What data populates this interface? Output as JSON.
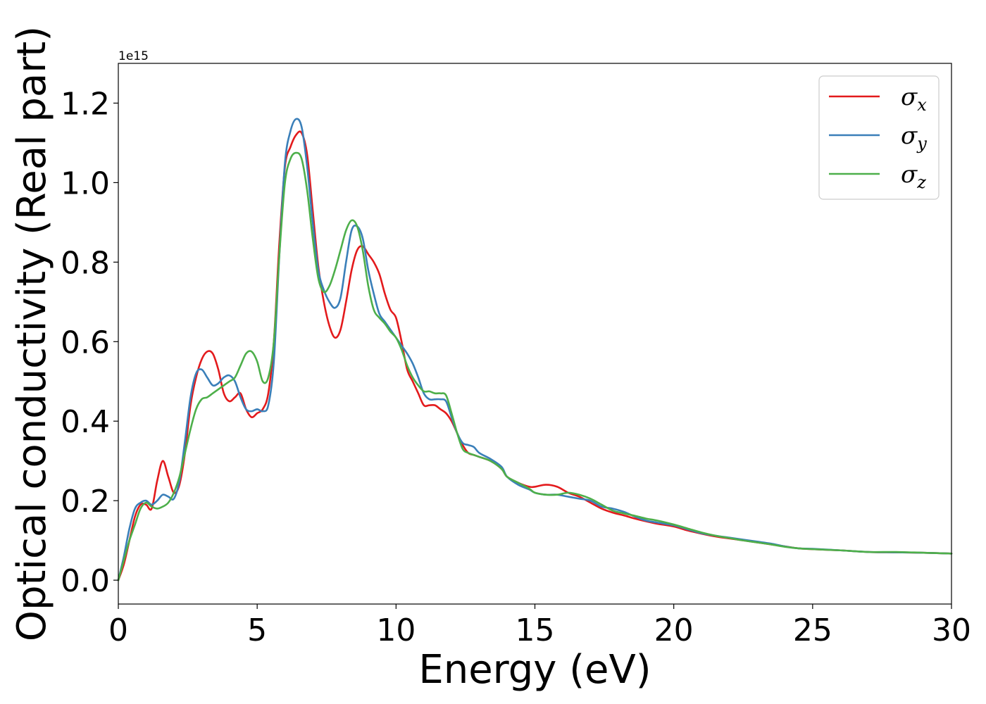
{
  "chart_data": {
    "type": "line",
    "xlabel": "Energy (eV)",
    "ylabel": "Optical conductivity (Real part)",
    "y_offset_label": "1e15",
    "xlim": [
      0,
      30
    ],
    "ylim": [
      -0.06,
      1.3
    ],
    "x_ticks": [
      0,
      5,
      10,
      15,
      20,
      25,
      30
    ],
    "x_tick_labels": [
      "0",
      "5",
      "10",
      "15",
      "20",
      "25",
      "30"
    ],
    "y_ticks": [
      0.0,
      0.2,
      0.4,
      0.6,
      0.8,
      1.0,
      1.2
    ],
    "y_tick_labels": [
      "0.0",
      "0.2",
      "0.4",
      "0.6",
      "0.8",
      "1.0",
      "1.2"
    ],
    "grid": false,
    "legend_position": "top-right",
    "series": [
      {
        "name": "σ",
        "subscript": "x",
        "color": "#e31a1c",
        "points": [
          [
            0,
            0
          ],
          [
            0.2,
            0.04
          ],
          [
            0.4,
            0.1
          ],
          [
            0.6,
            0.16
          ],
          [
            0.8,
            0.19
          ],
          [
            1.0,
            0.19
          ],
          [
            1.2,
            0.18
          ],
          [
            1.4,
            0.25
          ],
          [
            1.6,
            0.3
          ],
          [
            1.8,
            0.26
          ],
          [
            2.0,
            0.22
          ],
          [
            2.2,
            0.24
          ],
          [
            2.4,
            0.32
          ],
          [
            2.6,
            0.44
          ],
          [
            2.8,
            0.51
          ],
          [
            3.0,
            0.555
          ],
          [
            3.2,
            0.575
          ],
          [
            3.4,
            0.57
          ],
          [
            3.6,
            0.53
          ],
          [
            3.8,
            0.47
          ],
          [
            4.0,
            0.45
          ],
          [
            4.2,
            0.46
          ],
          [
            4.4,
            0.47
          ],
          [
            4.6,
            0.43
          ],
          [
            4.8,
            0.41
          ],
          [
            5.0,
            0.42
          ],
          [
            5.2,
            0.43
          ],
          [
            5.4,
            0.47
          ],
          [
            5.6,
            0.6
          ],
          [
            5.8,
            0.85
          ],
          [
            6.0,
            1.04
          ],
          [
            6.2,
            1.09
          ],
          [
            6.4,
            1.12
          ],
          [
            6.6,
            1.125
          ],
          [
            6.8,
            1.07
          ],
          [
            7.0,
            0.93
          ],
          [
            7.2,
            0.79
          ],
          [
            7.4,
            0.7
          ],
          [
            7.6,
            0.64
          ],
          [
            7.8,
            0.61
          ],
          [
            8.0,
            0.63
          ],
          [
            8.2,
            0.7
          ],
          [
            8.4,
            0.78
          ],
          [
            8.6,
            0.83
          ],
          [
            8.8,
            0.84
          ],
          [
            9.0,
            0.82
          ],
          [
            9.2,
            0.8
          ],
          [
            9.4,
            0.77
          ],
          [
            9.6,
            0.72
          ],
          [
            9.8,
            0.68
          ],
          [
            10.0,
            0.66
          ],
          [
            10.2,
            0.6
          ],
          [
            10.4,
            0.53
          ],
          [
            10.6,
            0.5
          ],
          [
            10.8,
            0.47
          ],
          [
            11.0,
            0.44
          ],
          [
            11.2,
            0.44
          ],
          [
            11.4,
            0.44
          ],
          [
            11.6,
            0.43
          ],
          [
            11.8,
            0.42
          ],
          [
            12.0,
            0.4
          ],
          [
            12.2,
            0.37
          ],
          [
            12.4,
            0.34
          ],
          [
            12.6,
            0.32
          ],
          [
            12.8,
            0.315
          ],
          [
            13.0,
            0.31
          ],
          [
            13.4,
            0.3
          ],
          [
            13.8,
            0.28
          ],
          [
            14.0,
            0.26
          ],
          [
            14.4,
            0.245
          ],
          [
            14.8,
            0.235
          ],
          [
            15.0,
            0.235
          ],
          [
            15.4,
            0.24
          ],
          [
            15.8,
            0.235
          ],
          [
            16.2,
            0.22
          ],
          [
            16.6,
            0.21
          ],
          [
            17.0,
            0.195
          ],
          [
            17.4,
            0.18
          ],
          [
            17.8,
            0.17
          ],
          [
            18.2,
            0.163
          ],
          [
            18.6,
            0.155
          ],
          [
            19.0,
            0.148
          ],
          [
            19.4,
            0.142
          ],
          [
            20.0,
            0.135
          ],
          [
            20.5,
            0.125
          ],
          [
            21.0,
            0.117
          ],
          [
            21.5,
            0.11
          ],
          [
            22.0,
            0.105
          ],
          [
            22.5,
            0.1
          ],
          [
            23.0,
            0.095
          ],
          [
            23.5,
            0.09
          ],
          [
            24.0,
            0.085
          ],
          [
            24.5,
            0.08
          ],
          [
            25.0,
            0.078
          ],
          [
            26.0,
            0.075
          ],
          [
            27.0,
            0.071
          ],
          [
            28.0,
            0.07
          ],
          [
            29.0,
            0.069
          ],
          [
            30.0,
            0.067
          ]
        ]
      },
      {
        "name": "σ",
        "subscript": "y",
        "color": "#3a7fb9",
        "points": [
          [
            0,
            0
          ],
          [
            0.2,
            0.06
          ],
          [
            0.4,
            0.13
          ],
          [
            0.6,
            0.18
          ],
          [
            0.8,
            0.195
          ],
          [
            1.0,
            0.2
          ],
          [
            1.2,
            0.19
          ],
          [
            1.4,
            0.2
          ],
          [
            1.6,
            0.215
          ],
          [
            1.8,
            0.21
          ],
          [
            2.0,
            0.205
          ],
          [
            2.2,
            0.25
          ],
          [
            2.4,
            0.35
          ],
          [
            2.6,
            0.46
          ],
          [
            2.8,
            0.52
          ],
          [
            3.0,
            0.53
          ],
          [
            3.2,
            0.51
          ],
          [
            3.4,
            0.49
          ],
          [
            3.6,
            0.495
          ],
          [
            3.8,
            0.51
          ],
          [
            4.0,
            0.515
          ],
          [
            4.2,
            0.5
          ],
          [
            4.4,
            0.46
          ],
          [
            4.6,
            0.43
          ],
          [
            4.8,
            0.425
          ],
          [
            5.0,
            0.43
          ],
          [
            5.2,
            0.425
          ],
          [
            5.4,
            0.44
          ],
          [
            5.6,
            0.55
          ],
          [
            5.8,
            0.82
          ],
          [
            6.0,
            1.05
          ],
          [
            6.2,
            1.13
          ],
          [
            6.4,
            1.16
          ],
          [
            6.6,
            1.14
          ],
          [
            6.8,
            1.04
          ],
          [
            7.0,
            0.9
          ],
          [
            7.2,
            0.78
          ],
          [
            7.4,
            0.73
          ],
          [
            7.6,
            0.7
          ],
          [
            7.8,
            0.685
          ],
          [
            8.0,
            0.71
          ],
          [
            8.2,
            0.8
          ],
          [
            8.4,
            0.88
          ],
          [
            8.6,
            0.89
          ],
          [
            8.8,
            0.86
          ],
          [
            9.0,
            0.78
          ],
          [
            9.2,
            0.72
          ],
          [
            9.4,
            0.67
          ],
          [
            9.6,
            0.65
          ],
          [
            9.8,
            0.63
          ],
          [
            10.0,
            0.61
          ],
          [
            10.2,
            0.59
          ],
          [
            10.4,
            0.57
          ],
          [
            10.6,
            0.545
          ],
          [
            10.8,
            0.51
          ],
          [
            11.0,
            0.47
          ],
          [
            11.2,
            0.455
          ],
          [
            11.4,
            0.455
          ],
          [
            11.6,
            0.455
          ],
          [
            11.8,
            0.45
          ],
          [
            12.0,
            0.41
          ],
          [
            12.2,
            0.37
          ],
          [
            12.4,
            0.345
          ],
          [
            12.6,
            0.34
          ],
          [
            12.8,
            0.335
          ],
          [
            13.0,
            0.32
          ],
          [
            13.4,
            0.305
          ],
          [
            13.8,
            0.285
          ],
          [
            14.0,
            0.26
          ],
          [
            14.4,
            0.24
          ],
          [
            14.8,
            0.228
          ],
          [
            15.0,
            0.22
          ],
          [
            15.4,
            0.215
          ],
          [
            15.8,
            0.215
          ],
          [
            16.2,
            0.21
          ],
          [
            16.6,
            0.205
          ],
          [
            17.0,
            0.2
          ],
          [
            17.4,
            0.185
          ],
          [
            17.8,
            0.18
          ],
          [
            18.2,
            0.172
          ],
          [
            18.6,
            0.16
          ],
          [
            19.0,
            0.15
          ],
          [
            19.4,
            0.145
          ],
          [
            20.0,
            0.138
          ],
          [
            20.5,
            0.128
          ],
          [
            21.0,
            0.118
          ],
          [
            21.5,
            0.112
          ],
          [
            22.0,
            0.107
          ],
          [
            22.5,
            0.102
          ],
          [
            23.0,
            0.097
          ],
          [
            23.5,
            0.092
          ],
          [
            24.0,
            0.085
          ],
          [
            24.5,
            0.08
          ],
          [
            25.0,
            0.079
          ],
          [
            26.0,
            0.075
          ],
          [
            27.0,
            0.071
          ],
          [
            28.0,
            0.07
          ],
          [
            29.0,
            0.069
          ],
          [
            30.0,
            0.067
          ]
        ]
      },
      {
        "name": "σ",
        "subscript": "z",
        "color": "#4daf4a",
        "points": [
          [
            0,
            0
          ],
          [
            0.2,
            0.05
          ],
          [
            0.4,
            0.1
          ],
          [
            0.6,
            0.14
          ],
          [
            0.8,
            0.18
          ],
          [
            1.0,
            0.195
          ],
          [
            1.2,
            0.185
          ],
          [
            1.4,
            0.18
          ],
          [
            1.6,
            0.185
          ],
          [
            1.8,
            0.195
          ],
          [
            2.0,
            0.22
          ],
          [
            2.2,
            0.26
          ],
          [
            2.4,
            0.32
          ],
          [
            2.6,
            0.38
          ],
          [
            2.8,
            0.43
          ],
          [
            3.0,
            0.455
          ],
          [
            3.2,
            0.46
          ],
          [
            3.4,
            0.47
          ],
          [
            3.6,
            0.48
          ],
          [
            3.8,
            0.49
          ],
          [
            4.0,
            0.5
          ],
          [
            4.2,
            0.51
          ],
          [
            4.4,
            0.54
          ],
          [
            4.6,
            0.57
          ],
          [
            4.8,
            0.575
          ],
          [
            5.0,
            0.55
          ],
          [
            5.2,
            0.5
          ],
          [
            5.4,
            0.51
          ],
          [
            5.6,
            0.6
          ],
          [
            5.8,
            0.82
          ],
          [
            6.0,
            1.0
          ],
          [
            6.2,
            1.06
          ],
          [
            6.4,
            1.075
          ],
          [
            6.6,
            1.06
          ],
          [
            6.8,
            0.98
          ],
          [
            7.0,
            0.86
          ],
          [
            7.2,
            0.76
          ],
          [
            7.4,
            0.725
          ],
          [
            7.6,
            0.74
          ],
          [
            7.8,
            0.78
          ],
          [
            8.0,
            0.83
          ],
          [
            8.2,
            0.88
          ],
          [
            8.4,
            0.905
          ],
          [
            8.6,
            0.89
          ],
          [
            8.8,
            0.83
          ],
          [
            9.0,
            0.74
          ],
          [
            9.2,
            0.68
          ],
          [
            9.4,
            0.66
          ],
          [
            9.6,
            0.645
          ],
          [
            9.8,
            0.625
          ],
          [
            10.0,
            0.61
          ],
          [
            10.2,
            0.58
          ],
          [
            10.4,
            0.54
          ],
          [
            10.6,
            0.51
          ],
          [
            10.8,
            0.49
          ],
          [
            11.0,
            0.475
          ],
          [
            11.2,
            0.475
          ],
          [
            11.4,
            0.47
          ],
          [
            11.6,
            0.47
          ],
          [
            11.8,
            0.465
          ],
          [
            12.0,
            0.42
          ],
          [
            12.2,
            0.37
          ],
          [
            12.4,
            0.33
          ],
          [
            12.6,
            0.32
          ],
          [
            12.8,
            0.315
          ],
          [
            13.0,
            0.31
          ],
          [
            13.4,
            0.3
          ],
          [
            13.8,
            0.28
          ],
          [
            14.0,
            0.26
          ],
          [
            14.4,
            0.245
          ],
          [
            14.8,
            0.23
          ],
          [
            15.0,
            0.22
          ],
          [
            15.4,
            0.215
          ],
          [
            15.8,
            0.215
          ],
          [
            16.2,
            0.22
          ],
          [
            16.6,
            0.215
          ],
          [
            17.0,
            0.205
          ],
          [
            17.4,
            0.19
          ],
          [
            17.8,
            0.175
          ],
          [
            18.2,
            0.168
          ],
          [
            18.6,
            0.162
          ],
          [
            19.0,
            0.155
          ],
          [
            19.4,
            0.15
          ],
          [
            20.0,
            0.14
          ],
          [
            20.5,
            0.13
          ],
          [
            21.0,
            0.12
          ],
          [
            21.5,
            0.112
          ],
          [
            22.0,
            0.106
          ],
          [
            22.5,
            0.1
          ],
          [
            23.0,
            0.095
          ],
          [
            23.5,
            0.09
          ],
          [
            24.0,
            0.084
          ],
          [
            24.5,
            0.08
          ],
          [
            25.0,
            0.078
          ],
          [
            26.0,
            0.075
          ],
          [
            27.0,
            0.071
          ],
          [
            28.0,
            0.071
          ],
          [
            29.0,
            0.069
          ],
          [
            30.0,
            0.067
          ]
        ]
      }
    ]
  }
}
